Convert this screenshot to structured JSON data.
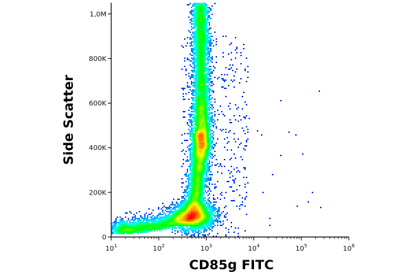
{
  "chart_data": {
    "type": "heatmap",
    "subtype": "flow-cytometry-density-dot-plot",
    "title": "",
    "xlabel": "CD85g FITC",
    "ylabel": "Side Scatter",
    "x_scale": "log",
    "xlim": [
      10,
      1000000
    ],
    "ylim": [
      0,
      1050000
    ],
    "x_ticks": [
      {
        "value": 10,
        "base": "10",
        "exp": "1"
      },
      {
        "value": 100,
        "base": "10",
        "exp": "2"
      },
      {
        "value": 1000,
        "base": "10",
        "exp": "3"
      },
      {
        "value": 10000,
        "base": "10",
        "exp": "4"
      },
      {
        "value": 100000,
        "base": "10",
        "exp": "5"
      },
      {
        "value": 1000000,
        "base": "10",
        "exp": "6"
      }
    ],
    "y_ticks": [
      {
        "value": 0,
        "label": "0"
      },
      {
        "value": 200000,
        "label": "200K"
      },
      {
        "value": 400000,
        "label": "400K"
      },
      {
        "value": 600000,
        "label": "600K"
      },
      {
        "value": 800000,
        "label": "800K"
      },
      {
        "value": 1000000,
        "label": "1,0M"
      }
    ],
    "populations": [
      {
        "x_center": 550,
        "y_center": 95000,
        "density": "peak"
      },
      {
        "x_center": 800,
        "y_center": 460000,
        "density": "medium"
      },
      {
        "x_center": 750,
        "y_center": 850000,
        "density": "medium"
      }
    ],
    "colors": {
      "low": "#0000ff",
      "mid": "#00ffff",
      "high": "#ffff00",
      "peak": "#ff0000"
    },
    "grid": false,
    "legend": "none"
  }
}
